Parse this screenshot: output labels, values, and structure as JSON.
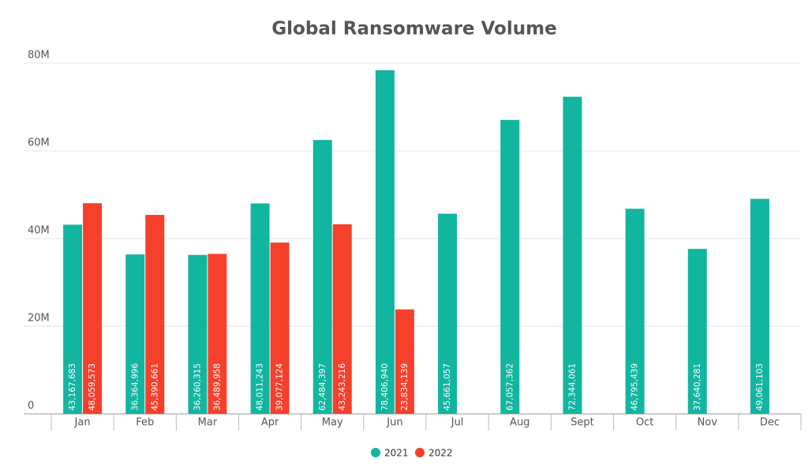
{
  "chart_data": {
    "type": "bar",
    "title": "Global Ransomware Volume",
    "categories": [
      "Jan",
      "Feb",
      "Mar",
      "Apr",
      "May",
      "Jun",
      "Jul",
      "Aug",
      "Sept",
      "Oct",
      "Nov",
      "Dec"
    ],
    "series": [
      {
        "name": "2021",
        "color": "#12b5a0",
        "values": [
          43167683,
          36364996,
          36260315,
          48011243,
          62484397,
          78406940,
          45661057,
          67057362,
          72344061,
          46795439,
          37640281,
          49061103
        ],
        "value_labels": [
          "43,167,683",
          "36,364,996",
          "36,260,315",
          "48,011,243",
          "62,484,397",
          "78,406,940",
          "45,661,057",
          "67,057,362",
          "72,344,061",
          "46,795,439",
          "37,640,281",
          "49,061,103"
        ]
      },
      {
        "name": "2022",
        "color": "#f5402c",
        "values": [
          48059573,
          45390661,
          36489958,
          39077124,
          43243216,
          23834139,
          null,
          null,
          null,
          null,
          null,
          null
        ],
        "value_labels": [
          "48,059,573",
          "45,390,661",
          "36,489,958",
          "39,077,124",
          "43,243,216",
          "23,834,139",
          null,
          null,
          null,
          null,
          null,
          null
        ]
      }
    ],
    "ylim": [
      0,
      80000000
    ],
    "yticks": [
      0,
      {
        "value": 20000000,
        "label": "20M"
      },
      {
        "value": 40000000,
        "label": "40M"
      },
      {
        "value": 60000000,
        "label": "60M"
      },
      {
        "value": 80000000,
        "label": "80M"
      }
    ],
    "grid": true,
    "legend": "bottom"
  }
}
